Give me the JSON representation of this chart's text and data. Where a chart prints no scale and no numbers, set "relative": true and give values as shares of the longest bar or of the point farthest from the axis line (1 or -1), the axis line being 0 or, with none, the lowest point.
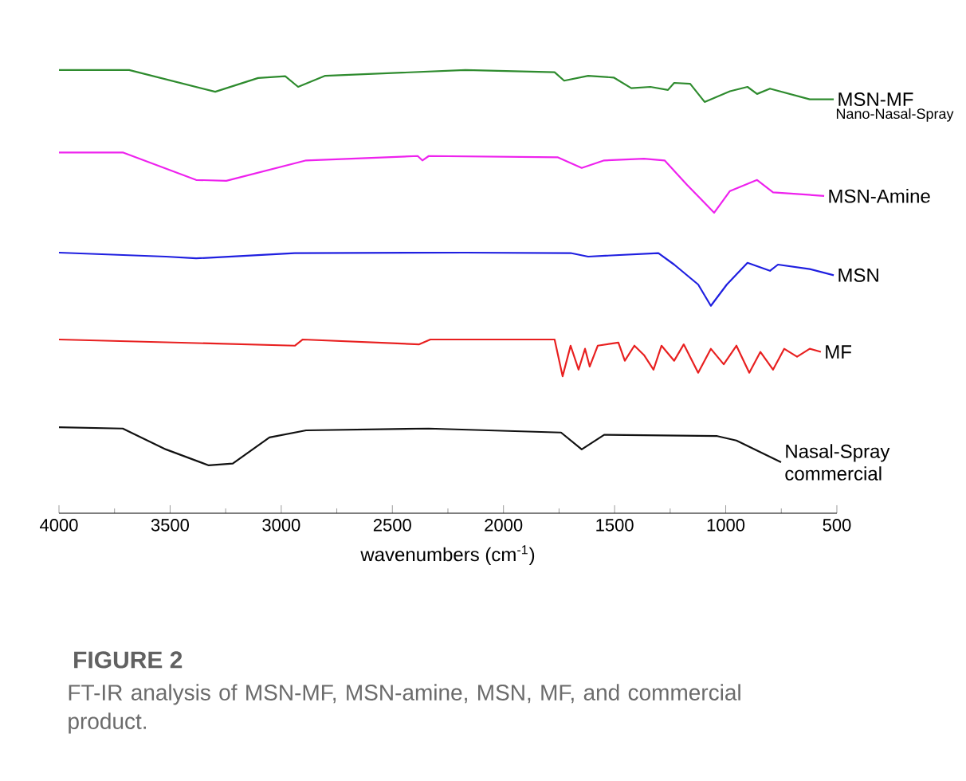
{
  "chart_data": {
    "type": "line",
    "title": "FIGURE 2",
    "subtitle": "FT-IR analysis of MSN-MF, MSN-amine, MSN, MF, and commercial product.",
    "xlabel": "wavenumbers (cm$^{-1}$)",
    "relative": true,
    "xlim": [
      4000,
      500
    ],
    "xticks": [
      4000,
      3500,
      3000,
      2500,
      2000,
      1500,
      1000,
      500
    ],
    "grid": false,
    "marker": "none",
    "line_style": "solid",
    "annotations": [
      "Nano-Nasal-Spray"
    ],
    "series": [
      {
        "name": "MSN-MF",
        "color": "#2e8b2e",
        "x": [
          4000,
          3684,
          3297,
          3104,
          2982,
          2924,
          2802,
          2171,
          1770,
          1727,
          1619,
          1504,
          1425,
          1339,
          1260,
          1232,
          1160,
          1095,
          981,
          902,
          859,
          801,
          622,
          514
        ],
        "values": [
          1.0,
          1.0,
          0.951,
          0.982,
          0.986,
          0.962,
          0.987,
          1.0,
          0.995,
          0.976,
          0.987,
          0.983,
          0.959,
          0.962,
          0.955,
          0.971,
          0.969,
          0.928,
          0.952,
          0.962,
          0.946,
          0.958,
          0.934,
          0.934
        ]
      },
      {
        "name": "MSN-Amine",
        "color": "#ee22ee",
        "x": [
          4000,
          3713,
          3383,
          3247,
          2888,
          2386,
          2365,
          2336,
          1755,
          1648,
          1547,
          1368,
          1275,
          1174,
          1052,
          981,
          859,
          787,
          557
        ],
        "values": [
          0.814,
          0.814,
          0.752,
          0.75,
          0.796,
          0.806,
          0.796,
          0.806,
          0.803,
          0.779,
          0.796,
          0.8,
          0.796,
          0.741,
          0.678,
          0.727,
          0.752,
          0.724,
          0.716
        ]
      },
      {
        "name": "MSN",
        "color": "#1f1fe0",
        "x": [
          4000,
          3519,
          3383,
          2939,
          2171,
          1698,
          1619,
          1303,
          1232,
          1124,
          1067,
          995,
          902,
          801,
          765,
          622,
          514
        ],
        "values": [
          0.588,
          0.579,
          0.575,
          0.587,
          0.588,
          0.587,
          0.579,
          0.587,
          0.561,
          0.516,
          0.468,
          0.516,
          0.565,
          0.547,
          0.561,
          0.551,
          0.537
        ]
      },
      {
        "name": "MF",
        "color": "#e82020",
        "x": [
          4000,
          2939,
          2903,
          2379,
          2329,
          1770,
          1734,
          1698,
          1662,
          1633,
          1612,
          1576,
          1483,
          1454,
          1411,
          1368,
          1325,
          1289,
          1232,
          1189,
          1124,
          1067,
          1009,
          952,
          894,
          844,
          787,
          737,
          679,
          622,
          572
        ],
        "values": [
          0.392,
          0.378,
          0.392,
          0.381,
          0.392,
          0.392,
          0.309,
          0.378,
          0.324,
          0.371,
          0.331,
          0.378,
          0.385,
          0.344,
          0.378,
          0.357,
          0.324,
          0.378,
          0.344,
          0.381,
          0.317,
          0.371,
          0.336,
          0.378,
          0.317,
          0.364,
          0.324,
          0.371,
          0.353,
          0.371,
          0.364
        ]
      },
      {
        "name": "Nasal-Spray commercial",
        "color": "#111111",
        "x": [
          4000,
          3713,
          3519,
          3326,
          3218,
          3053,
          2888,
          2336,
          1741,
          1648,
          1547,
          1038,
          952,
          751
        ],
        "values": [
          0.194,
          0.191,
          0.144,
          0.108,
          0.112,
          0.171,
          0.187,
          0.191,
          0.182,
          0.144,
          0.177,
          0.174,
          0.164,
          0.115
        ]
      }
    ]
  }
}
